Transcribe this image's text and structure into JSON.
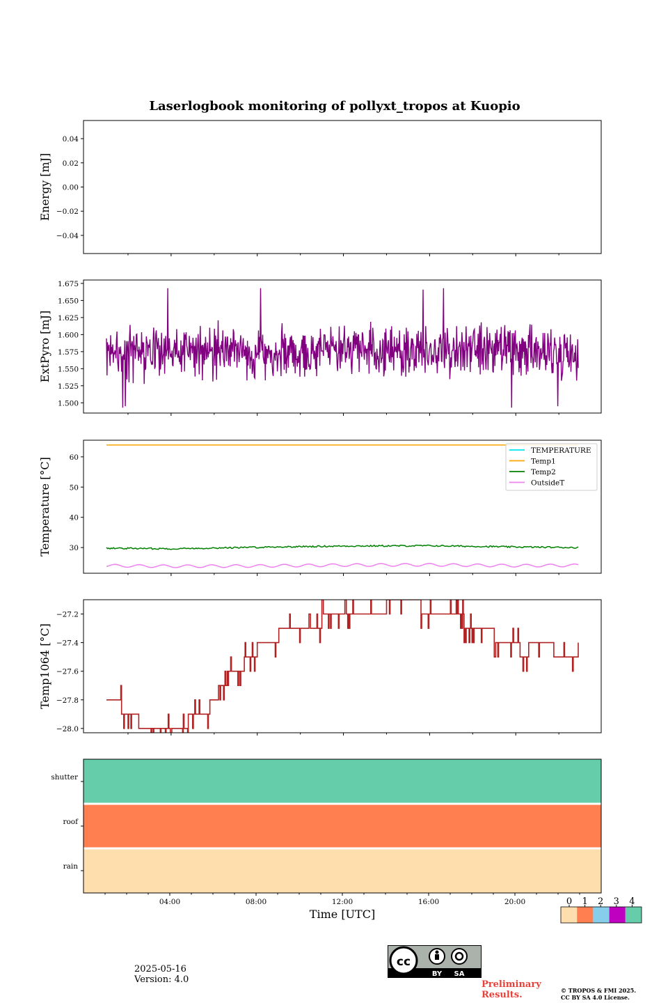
{
  "title": "Laserlogbook monitoring of pollyxt_tropos at Kuopio",
  "xlabel": "Time [UTC]",
  "x_ticks": [
    "04:00",
    "08:00",
    "12:00",
    "16:00",
    "20:00"
  ],
  "footer": {
    "date": "2025-05-16",
    "version": "Version: 4.0",
    "preliminary_line1": "Preliminary",
    "preliminary_line2": "Results.",
    "copyright_line1": "© TROPOS & FMI 2025.",
    "copyright_line2": "CC BY SA 4.0 License.",
    "license_badge": [
      "BY",
      "SA"
    ]
  },
  "chart_data": [
    {
      "type": "line",
      "ylabel": "Energy [mJ]",
      "ylim": [
        -0.055,
        0.055
      ],
      "y_ticks": [
        0.04,
        0.02,
        0.0,
        -0.02,
        -0.04
      ],
      "y_tick_labels": [
        "0.04",
        "0.02",
        "0.00",
        "−0.02",
        "−0.04"
      ],
      "series": []
    },
    {
      "type": "line",
      "ylabel": "ExtPyro [mJ]",
      "ylim": [
        1.485,
        1.68
      ],
      "y_ticks": [
        1.675,
        1.65,
        1.625,
        1.6,
        1.575,
        1.55,
        1.525,
        1.5
      ],
      "y_tick_labels": [
        "1.675",
        "1.650",
        "1.625",
        "1.600",
        "1.575",
        "1.550",
        "1.525",
        "1.500"
      ],
      "series": [
        {
          "color": "#800080",
          "x_range": [
            1.0,
            22.9
          ],
          "mean": 1.575,
          "noise": 0.022,
          "spikes_up": [
            1.668,
            1.666,
            1.65
          ],
          "spikes_down": [
            1.49,
            1.493,
            1.495
          ]
        }
      ]
    },
    {
      "type": "line",
      "ylabel": "Temperature [°C]",
      "ylim": [
        21.5,
        65.5
      ],
      "y_ticks": [
        60,
        50,
        40,
        30
      ],
      "y_tick_labels": [
        "60",
        "50",
        "40",
        "30"
      ],
      "legend": "top-right",
      "series": [
        {
          "name": "TEMPERATURE",
          "color": "#00e5ee",
          "values": []
        },
        {
          "name": "Temp1",
          "color": "#ffa500",
          "x": [
            1.0,
            22.9
          ],
          "values": [
            63.9,
            63.9
          ]
        },
        {
          "name": "Temp2",
          "color": "#008000",
          "x": [
            1.0,
            4.0,
            8.0,
            12.0,
            16.0,
            20.0,
            22.9
          ],
          "values": [
            29.8,
            29.6,
            30.1,
            30.5,
            30.6,
            30.2,
            30.0
          ]
        },
        {
          "name": "OutsideT",
          "color": "#ee82ee",
          "x": [
            1.0,
            4.0,
            8.0,
            12.0,
            16.0,
            20.0,
            22.9
          ],
          "values": [
            24.0,
            23.8,
            23.9,
            24.2,
            24.3,
            24.0,
            24.1
          ]
        }
      ]
    },
    {
      "type": "line",
      "ylabel": "Temp1064 [°C]",
      "ylim": [
        -28.03,
        -27.1
      ],
      "y_ticks": [
        -27.2,
        -27.4,
        -27.6,
        -27.8,
        -28.0
      ],
      "y_tick_labels": [
        "−27.2",
        "−27.4",
        "−27.6",
        "−27.8",
        "−28.0"
      ],
      "series": [
        {
          "color": "#b22222",
          "steps": [
            [
              1.0,
              -27.8
            ],
            [
              1.6,
              -27.8
            ],
            [
              1.7,
              -27.9
            ],
            [
              2.3,
              -27.9
            ],
            [
              2.5,
              -28.0
            ],
            [
              4.0,
              -28.0
            ],
            [
              4.8,
              -27.9
            ],
            [
              5.6,
              -27.9
            ],
            [
              5.8,
              -27.8
            ],
            [
              6.2,
              -27.7
            ],
            [
              6.6,
              -27.6
            ],
            [
              7.4,
              -27.5
            ],
            [
              8.0,
              -27.4
            ],
            [
              9.0,
              -27.3
            ],
            [
              10.6,
              -27.3
            ],
            [
              11.0,
              -27.2
            ],
            [
              13.5,
              -27.2
            ],
            [
              14.0,
              -27.1
            ],
            [
              15.6,
              -27.2
            ],
            [
              17.2,
              -27.2
            ],
            [
              17.6,
              -27.3
            ],
            [
              18.8,
              -27.3
            ],
            [
              19.0,
              -27.4
            ],
            [
              19.6,
              -27.4
            ],
            [
              20.2,
              -27.5
            ],
            [
              20.6,
              -27.4
            ],
            [
              21.8,
              -27.5
            ],
            [
              22.6,
              -27.5
            ],
            [
              22.9,
              -27.4
            ]
          ]
        }
      ]
    },
    {
      "type": "heatmap",
      "rows": [
        "shutter",
        "roof",
        "rain"
      ],
      "row_values": [
        4,
        1,
        0
      ],
      "colorbar": {
        "ticks": [
          "0",
          "1",
          "2",
          "3",
          "4"
        ],
        "colors": [
          "#ffdead",
          "#ff7f50",
          "#87ceeb",
          "#c000c0",
          "#66cdaa"
        ]
      }
    }
  ]
}
